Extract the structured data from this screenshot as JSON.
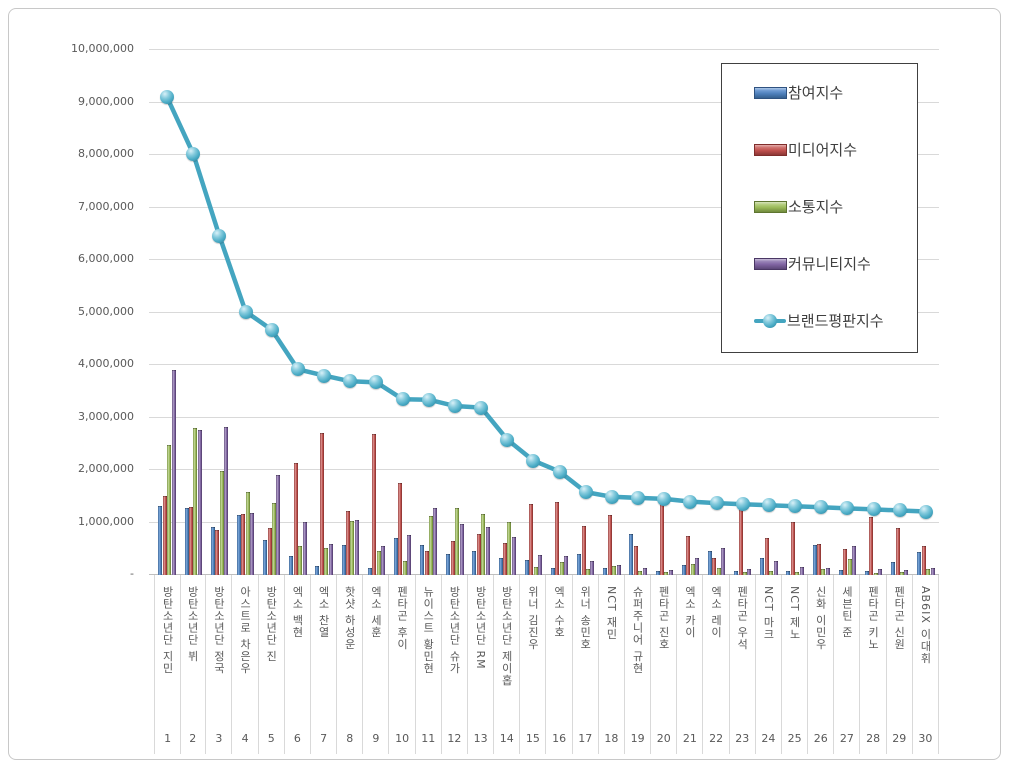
{
  "chart_data": {
    "type": "bar+line",
    "title": "",
    "y_axis": {
      "min": 0,
      "max": 10000000,
      "step": 1000000,
      "grid": true,
      "ticks": [
        "-",
        "1,000,000",
        "2,000,000",
        "3,000,000",
        "4,000,000",
        "5,000,000",
        "6,000,000",
        "7,000,000",
        "8,000,000",
        "9,000,000",
        "10,000,000"
      ]
    },
    "categories": [
      "방탄소년단 지민",
      "방탄소년단 뷔",
      "방탄소년단 정국",
      "아스트로 차은우",
      "방탄소년단 진",
      "엑소 백현",
      "엑소 찬열",
      "핫샷 하성운",
      "엑소 세훈",
      "펜타곤 후이",
      "뉴이스트 황민현",
      "방탄소년단 슈가",
      "방탄소년단 RM",
      "방탄소년단 제이홉",
      "위너 김진우",
      "엑소 수호",
      "위너 송민호",
      "NCT 재민",
      "슈퍼주니어 규현",
      "펜타곤 진호",
      "엑소 카이",
      "엑소 레이",
      "펜타곤 우석",
      "NCT 마크",
      "NCT 제노",
      "신화 이민우",
      "세븐틴 준",
      "펜타곤 키노",
      "펜타곤 신원",
      "AB6IX 이대휘"
    ],
    "ranks": [
      "1",
      "2",
      "3",
      "4",
      "5",
      "6",
      "7",
      "8",
      "9",
      "10",
      "11",
      "12",
      "13",
      "14",
      "15",
      "16",
      "17",
      "18",
      "19",
      "20",
      "21",
      "22",
      "23",
      "24",
      "25",
      "26",
      "27",
      "28",
      "29",
      "30"
    ],
    "legend_position": "top-right-overlay",
    "series": [
      {
        "id": "participation",
        "name": "참여지수",
        "type": "bar",
        "color": "#4f81bd",
        "values": [
          1300000,
          1250000,
          890000,
          1130000,
          650000,
          340000,
          150000,
          550000,
          120000,
          680000,
          550000,
          390000,
          440000,
          300000,
          270000,
          120000,
          380000,
          110000,
          760000,
          60000,
          170000,
          440000,
          60000,
          310000,
          60000,
          550000,
          80000,
          60000,
          230000,
          420000
        ]
      },
      {
        "id": "media",
        "name": "미디어지수",
        "type": "bar",
        "color": "#c0504d",
        "values": [
          1480000,
          1280000,
          840000,
          1140000,
          870000,
          2110000,
          2680000,
          1200000,
          2660000,
          1740000,
          440000,
          620000,
          760000,
          600000,
          1330000,
          1380000,
          920000,
          1130000,
          540000,
          1350000,
          730000,
          310000,
          1280000,
          690000,
          990000,
          570000,
          480000,
          1080000,
          870000,
          540000
        ]
      },
      {
        "id": "communication",
        "name": "소통지수",
        "type": "bar",
        "color": "#9bbb59",
        "values": [
          2460000,
          2780000,
          1970000,
          1560000,
          1350000,
          540000,
          490000,
          1010000,
          430000,
          240000,
          1110000,
          1260000,
          1140000,
          1000000,
          130000,
          220000,
          100000,
          150000,
          50000,
          30000,
          200000,
          110000,
          40000,
          60000,
          40000,
          100000,
          290000,
          20000,
          30000,
          90000
        ]
      },
      {
        "id": "community",
        "name": "커뮤니티지수",
        "type": "bar",
        "color": "#8064a2",
        "values": [
          3890000,
          2740000,
          2800000,
          1170000,
          1890000,
          1000000,
          580000,
          1020000,
          540000,
          740000,
          1250000,
          950000,
          900000,
          700000,
          370000,
          350000,
          240000,
          170000,
          110000,
          80000,
          310000,
          500000,
          90000,
          250000,
          140000,
          110000,
          530000,
          100000,
          70000,
          120000
        ]
      },
      {
        "id": "brand-reputation",
        "name": "브랜드평판지수",
        "type": "line",
        "color": "#4bacc6",
        "values": [
          9080000,
          8000000,
          6440000,
          5000000,
          4650000,
          3900000,
          3780000,
          3670000,
          3650000,
          3330000,
          3320000,
          3200000,
          3170000,
          2560000,
          2160000,
          1950000,
          1560000,
          1470000,
          1450000,
          1430000,
          1380000,
          1350000,
          1330000,
          1310000,
          1290000,
          1270000,
          1250000,
          1230000,
          1210000,
          1190000
        ]
      }
    ]
  }
}
